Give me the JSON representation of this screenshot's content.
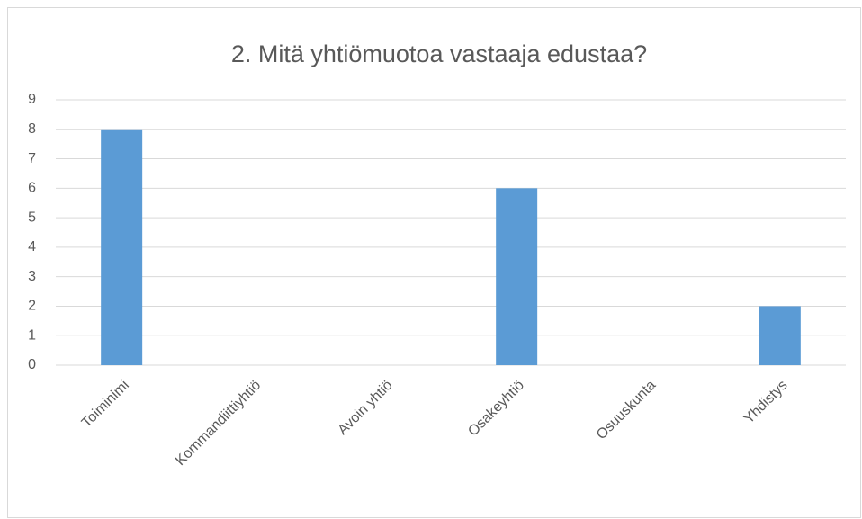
{
  "chart_data": {
    "type": "bar",
    "title": "2. Mitä yhtiömuotoa vastaaja edustaa?",
    "categories": [
      "Toiminimi",
      "Kommandiittiyhtiö",
      "Avoin yhtiö",
      "Osakeyhtiö",
      "Osuuskunta",
      "Yhdistys"
    ],
    "values": [
      8,
      0,
      0,
      6,
      0,
      2
    ],
    "color": "#5b9bd5",
    "ylim": [
      0,
      9
    ],
    "yticks": [
      0,
      1,
      2,
      3,
      4,
      5,
      6,
      7,
      8,
      9
    ],
    "grid": true
  }
}
